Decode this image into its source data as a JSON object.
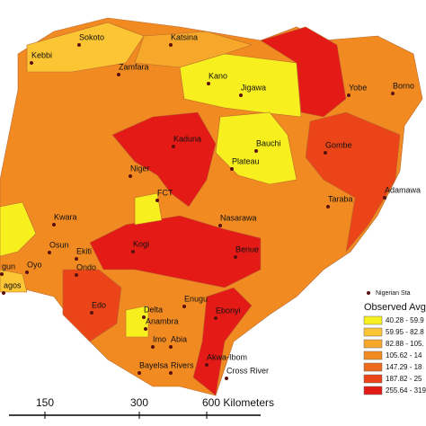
{
  "states": [
    "Sokoto",
    "Katsina",
    "Kebbi",
    "Zamfara",
    "Kano",
    "Jigawa",
    "Yobe",
    "Borno",
    "Kaduna",
    "Bauchi",
    "Gombe",
    "Plateau",
    "Niger",
    "Taraba",
    "Adamawa",
    "FCT",
    "Kwara",
    "Nasarawa",
    "Osun",
    "Ekiti",
    "Kogi",
    "Benue",
    "Oyo",
    "Ondo",
    "gun",
    "agos",
    "Enugu",
    "Edo",
    "Delta",
    "Ebonyi",
    "Anambra",
    "Imo",
    "Abia",
    "Bayelsa",
    "Rivers",
    "Akwa-Ibom",
    "Cross River"
  ],
  "legend": {
    "points_label": "Nigerian Sta",
    "title": "Observed Avg_",
    "classes": [
      {
        "label": "40.28 - 59.9",
        "color": "#f7f01e"
      },
      {
        "label": "59.95 - 82.8",
        "color": "#fbc534"
      },
      {
        "label": "82.88 - 105.",
        "color": "#f7a82a"
      },
      {
        "label": "105.62 - 14",
        "color": "#f28a22"
      },
      {
        "label": "147.29 - 18",
        "color": "#ee6a1c"
      },
      {
        "label": "187.82 - 25",
        "color": "#ea4418"
      },
      {
        "label": "255.64 - 319",
        "color": "#e31a16"
      }
    ]
  },
  "scale": {
    "labels": [
      "150",
      "300",
      "600 Kilometers"
    ]
  }
}
